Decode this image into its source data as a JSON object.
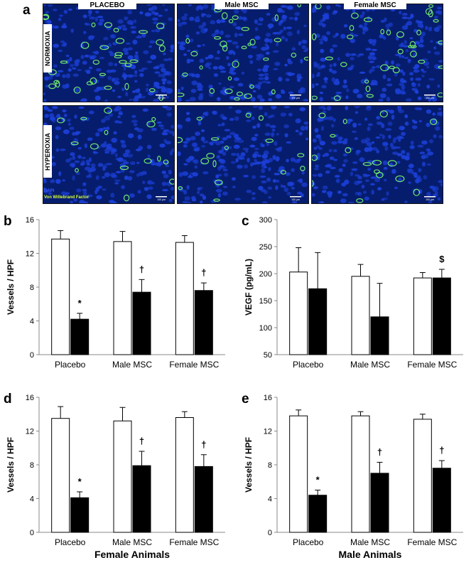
{
  "panel_a": {
    "letter": "a",
    "columns": [
      "PLACEBO",
      "Male MSC",
      "Female MSC"
    ],
    "rows": [
      "NORMOXIA",
      "HYPEROXIA"
    ],
    "legend": {
      "dapi": "DAPI",
      "vwf": "Von Willebrand Factor"
    },
    "scale_bar": "100 µm",
    "colors": {
      "nuclei": "#1b3fd6",
      "background": "#061d6e",
      "vessels": "#7dff6a",
      "dapi_text": "#3a5cff",
      "vwf_text": "#d6ff3a"
    }
  },
  "chart_data": [
    {
      "id": "b",
      "type": "bar",
      "letter": "b",
      "categories": [
        "Placebo",
        "Male MSC",
        "Female MSC"
      ],
      "series": [
        {
          "values": [
            13.7,
            13.4,
            13.3
          ],
          "errors": [
            1.0,
            1.2,
            0.8
          ],
          "color": "#ffffff"
        },
        {
          "values": [
            4.2,
            7.4,
            7.6
          ],
          "errors": [
            0.7,
            1.5,
            0.9
          ],
          "color": "#000000"
        }
      ],
      "annotations": [
        {
          "category": 0,
          "series": 1,
          "symbol": "*"
        },
        {
          "category": 1,
          "series": 1,
          "symbol": "†"
        },
        {
          "category": 2,
          "series": 1,
          "symbol": "†"
        }
      ],
      "ylabel": "Vessels / HPF",
      "xlabel": "",
      "ylim": [
        0,
        16
      ],
      "yticks": [
        0,
        4,
        8,
        12,
        16
      ]
    },
    {
      "id": "c",
      "type": "bar",
      "letter": "c",
      "categories": [
        "Placebo",
        "Male MSC",
        "Female MSC"
      ],
      "series": [
        {
          "values": [
            203,
            195,
            192
          ],
          "errors": [
            45,
            22,
            10
          ],
          "color": "#ffffff"
        },
        {
          "values": [
            172,
            120,
            192
          ],
          "errors": [
            67,
            62,
            16
          ],
          "color": "#000000"
        }
      ],
      "annotations": [
        {
          "category": 2,
          "series": 1,
          "symbol": "$"
        }
      ],
      "ylabel": "VEGF (pg/mL)",
      "xlabel": "",
      "ylim": [
        50,
        300
      ],
      "yticks": [
        50,
        100,
        150,
        200,
        250,
        300
      ]
    },
    {
      "id": "d",
      "type": "bar",
      "letter": "d",
      "categories": [
        "Placebo",
        "Male MSC",
        "Female MSC"
      ],
      "series": [
        {
          "values": [
            13.5,
            13.2,
            13.6
          ],
          "errors": [
            1.4,
            1.6,
            0.7
          ],
          "color": "#ffffff"
        },
        {
          "values": [
            4.1,
            7.9,
            7.8
          ],
          "errors": [
            0.7,
            1.7,
            1.4
          ],
          "color": "#000000"
        }
      ],
      "annotations": [
        {
          "category": 0,
          "series": 1,
          "symbol": "*"
        },
        {
          "category": 1,
          "series": 1,
          "symbol": "†"
        },
        {
          "category": 2,
          "series": 1,
          "symbol": "†"
        }
      ],
      "ylabel": "Vessels / HPF",
      "xlabel": "Female Animals",
      "ylim": [
        0,
        16
      ],
      "yticks": [
        0,
        4,
        8,
        12,
        16
      ]
    },
    {
      "id": "e",
      "type": "bar",
      "letter": "e",
      "categories": [
        "Placebo",
        "Male MSC",
        "Female MSC"
      ],
      "series": [
        {
          "values": [
            13.8,
            13.8,
            13.4
          ],
          "errors": [
            0.7,
            0.5,
            0.6
          ],
          "color": "#ffffff"
        },
        {
          "values": [
            4.4,
            7.0,
            7.6
          ],
          "errors": [
            0.6,
            1.3,
            0.9
          ],
          "color": "#000000"
        }
      ],
      "annotations": [
        {
          "category": 0,
          "series": 1,
          "symbol": "*"
        },
        {
          "category": 1,
          "series": 1,
          "symbol": "†"
        },
        {
          "category": 2,
          "series": 1,
          "symbol": "†"
        }
      ],
      "ylabel": "Vessels / HPF",
      "xlabel": "Male Animals",
      "ylim": [
        0,
        16
      ],
      "yticks": [
        0,
        4,
        8,
        12,
        16
      ]
    }
  ]
}
